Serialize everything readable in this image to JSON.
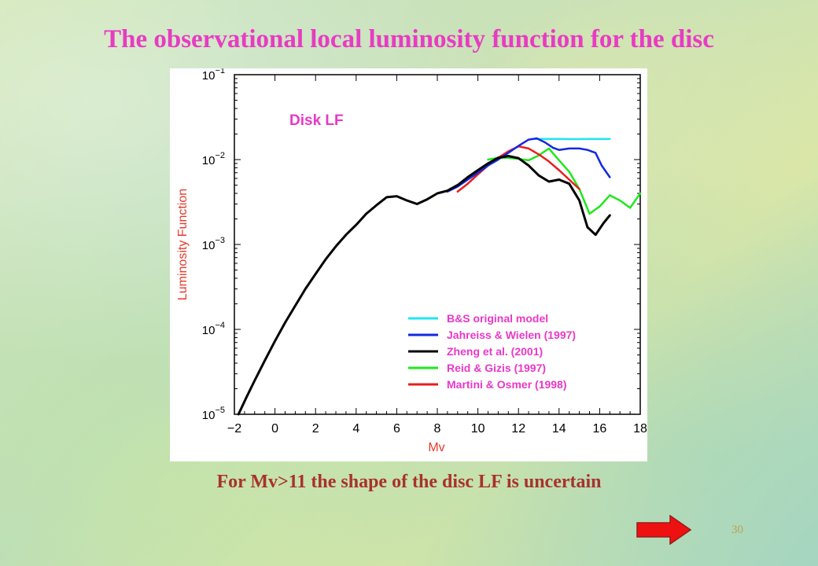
{
  "slide": {
    "title": "The observational local luminosity function for the disc",
    "caption": "For Mv>11 the shape of the disc LF is uncertain",
    "page_number": "30",
    "next_icon": "red-right-arrow"
  },
  "colors": {
    "title": "#e83bc3",
    "caption": "#a8322d",
    "axis_label": "#e8392a",
    "chart_annotation": "#e838c8"
  },
  "chart_data": {
    "type": "line",
    "annotation": "Disk LF",
    "xlabel": "Mv",
    "ylabel": "Luminosity Function",
    "xlim": [
      -2,
      18
    ],
    "ylim": [
      1e-05,
      0.1
    ],
    "yscale": "log",
    "x_ticks": [
      -2,
      0,
      2,
      4,
      6,
      8,
      10,
      12,
      14,
      16,
      18
    ],
    "x_tick_labels": [
      "−2",
      "0",
      "2",
      "4",
      "6",
      "8",
      "10",
      "12",
      "14",
      "16",
      "18"
    ],
    "y_tick_labels": [
      {
        "base": "10",
        "exp": "−1",
        "value": 0.1
      },
      {
        "base": "10",
        "exp": "−2",
        "value": 0.01
      },
      {
        "base": "10",
        "exp": "−3",
        "value": 0.001
      },
      {
        "base": "10",
        "exp": "−4",
        "value": 0.0001
      },
      {
        "base": "10",
        "exp": "−5",
        "value": 1e-05
      }
    ],
    "grid": false,
    "legend_position": "bottom-right",
    "series": [
      {
        "name": "B&S original model",
        "color": "#22e5f0",
        "x": [
          12.8,
          13.5,
          14.0,
          14.5,
          15.0,
          15.5,
          16.0,
          16.5
        ],
        "y": [
          0.0175,
          0.0175,
          0.0175,
          0.0174,
          0.0174,
          0.0175,
          0.0175,
          0.0175
        ]
      },
      {
        "name": "Jahreiss & Wielen (1997)",
        "color": "#1428e0",
        "x": [
          8.5,
          9.0,
          9.5,
          10.0,
          10.5,
          11.0,
          11.5,
          12.0,
          12.5,
          12.9,
          13.3,
          13.7,
          14.0,
          14.5,
          15.0,
          15.4,
          15.8,
          16.1,
          16.5
        ],
        "y": [
          0.0042,
          0.0048,
          0.0058,
          0.007,
          0.0085,
          0.01,
          0.012,
          0.0145,
          0.0172,
          0.0178,
          0.016,
          0.0138,
          0.013,
          0.0135,
          0.0135,
          0.013,
          0.012,
          0.0085,
          0.0062
        ]
      },
      {
        "name": "Zheng et al. (2001)",
        "color": "#000000",
        "x": [
          -1.8,
          -1.4,
          -1.0,
          -0.5,
          0.0,
          0.5,
          1.0,
          1.5,
          2.0,
          2.5,
          3.0,
          3.5,
          4.0,
          4.5,
          5.0,
          5.5,
          6.0,
          6.5,
          7.0,
          7.5,
          8.0,
          8.5,
          9.0,
          9.5,
          10.0,
          10.5,
          11.0,
          11.5,
          12.0,
          12.5,
          13.0,
          13.5,
          14.0,
          14.5,
          15.0,
          15.4,
          15.8,
          16.2,
          16.5
        ],
        "y": [
          1e-05,
          1.6e-05,
          2.5e-05,
          4.3e-05,
          7.3e-05,
          0.00012,
          0.00019,
          0.0003,
          0.00045,
          0.00067,
          0.00095,
          0.0013,
          0.0017,
          0.0023,
          0.0029,
          0.0036,
          0.0037,
          0.0033,
          0.003,
          0.0034,
          0.004,
          0.0043,
          0.005,
          0.0062,
          0.0075,
          0.009,
          0.0105,
          0.011,
          0.0104,
          0.0085,
          0.0065,
          0.0055,
          0.0058,
          0.0052,
          0.0033,
          0.0016,
          0.0013,
          0.0018,
          0.0022
        ]
      },
      {
        "name": "Reid & Gizis (1997)",
        "color": "#1ee81e",
        "x": [
          10.5,
          11.0,
          11.5,
          12.0,
          12.5,
          13.0,
          13.5,
          14.0,
          14.5,
          15.0,
          15.5,
          16.0,
          16.5,
          17.0,
          17.5,
          18.0
        ],
        "y": [
          0.01,
          0.0105,
          0.0105,
          0.0102,
          0.0098,
          0.0112,
          0.0135,
          0.0098,
          0.0072,
          0.0045,
          0.0023,
          0.0028,
          0.0038,
          0.0033,
          0.0027,
          0.004
        ]
      },
      {
        "name": "Martini & Osmer (1998)",
        "color": "#e81e1e",
        "x": [
          9.0,
          9.5,
          10.0,
          10.5,
          11.0,
          11.5,
          12.0,
          12.5,
          13.0,
          13.5,
          14.0,
          14.5,
          15.0
        ],
        "y": [
          0.0042,
          0.0052,
          0.0067,
          0.0085,
          0.0105,
          0.0125,
          0.0143,
          0.0135,
          0.0115,
          0.0095,
          0.0075,
          0.0058,
          0.0045
        ]
      }
    ]
  }
}
